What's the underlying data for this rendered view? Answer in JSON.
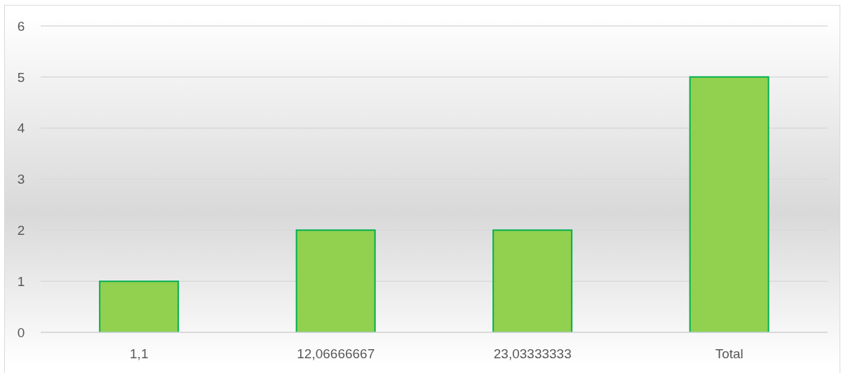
{
  "chart_data": {
    "type": "bar",
    "categories": [
      "1,1",
      "12,06666667",
      "23,03333333",
      "Total"
    ],
    "values": [
      1,
      2,
      2,
      5
    ],
    "color": "#92d050",
    "ylim": [
      0,
      6
    ],
    "yticks": [
      0,
      1,
      2,
      3,
      4,
      5,
      6
    ],
    "grid": "y"
  }
}
